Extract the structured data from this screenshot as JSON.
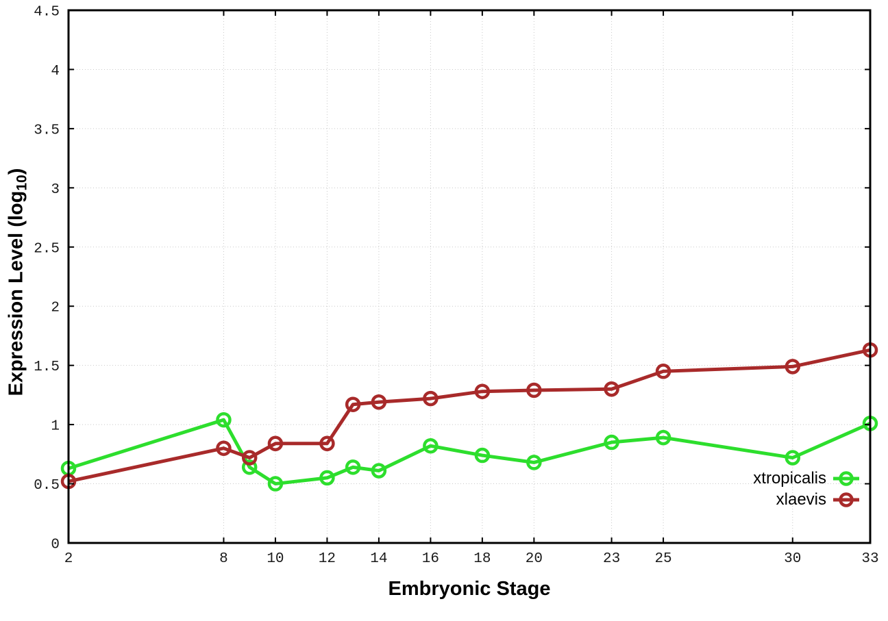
{
  "chart_data": {
    "type": "line",
    "title": "",
    "xlabel": "Embryonic Stage",
    "ylabel": {
      "main": "Expression Level (log",
      "sub": "10",
      "suffix": ")"
    },
    "x": [
      2,
      8,
      9,
      10,
      12,
      13,
      14,
      16,
      18,
      20,
      23,
      25,
      30,
      33
    ],
    "series": [
      {
        "name": "xtropicalis",
        "color": "#2dde2d",
        "values": [
          0.63,
          1.04,
          0.64,
          0.5,
          0.55,
          0.64,
          0.61,
          0.82,
          0.74,
          0.68,
          0.85,
          0.89,
          0.72,
          1.01
        ]
      },
      {
        "name": "xlaevis",
        "color": "#a82a2a",
        "values": [
          0.52,
          0.8,
          0.72,
          0.84,
          0.84,
          1.17,
          1.19,
          1.22,
          1.28,
          1.29,
          1.3,
          1.45,
          1.49,
          1.63
        ]
      }
    ],
    "xlim": [
      2,
      33
    ],
    "ylim": [
      0,
      4.5
    ],
    "xticks": [
      2,
      8,
      10,
      12,
      14,
      16,
      18,
      20,
      23,
      25,
      30,
      33
    ],
    "xtick_labels": [
      "2",
      "8",
      "10",
      "12",
      "14",
      "16",
      "18",
      "20",
      "23",
      "25",
      "30",
      "33"
    ],
    "yticks": [
      0,
      0.5,
      1,
      1.5,
      2,
      2.5,
      3,
      3.5,
      4,
      4.5
    ],
    "ytick_labels": [
      "0",
      "0.5",
      "1",
      "1.5",
      "2",
      "2.5",
      "3",
      "3.5",
      "4",
      "4.5"
    ],
    "grid": true,
    "legend_position": "bottom-right-inside",
    "marker": "open-circle"
  },
  "styles": {
    "background": "#ffffff",
    "grid_color": "#c8c8c8",
    "axis_color": "#000000",
    "tick_label_color": "#1a1a1a"
  }
}
